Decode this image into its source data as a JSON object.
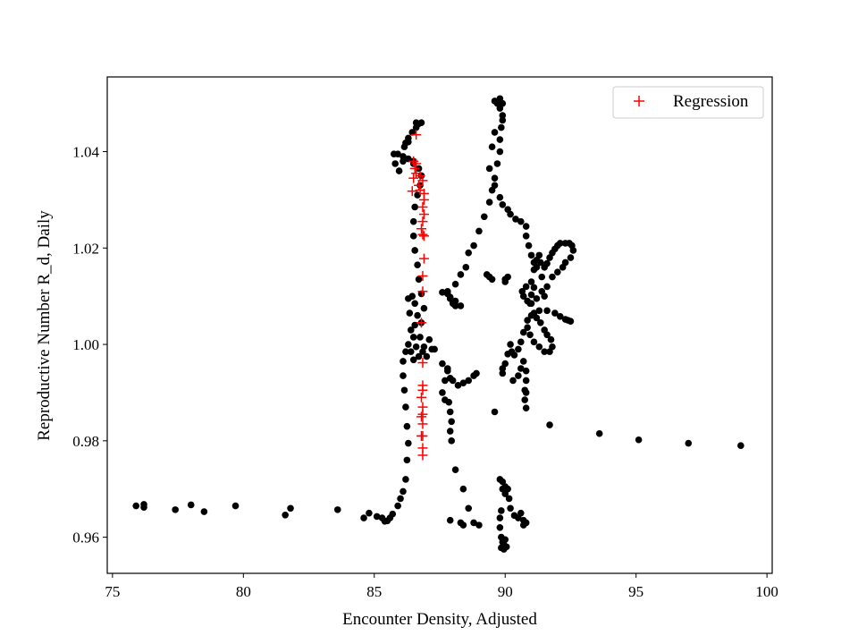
{
  "chart_data": {
    "type": "scatter",
    "title": "",
    "xlabel": "Encounter Density, Adjusted",
    "ylabel": "Reproductive Number R_d, Daily",
    "xlim": [
      74.8,
      100.2
    ],
    "ylim": [
      0.9525,
      1.0555
    ],
    "grid": false,
    "legend_placement": "top-right",
    "x_ticks": [
      75,
      80,
      85,
      90,
      95,
      100
    ],
    "x_tick_labels": [
      "75",
      "80",
      "85",
      "90",
      "95",
      "100"
    ],
    "y_ticks": [
      0.96,
      0.98,
      1.0,
      1.02,
      1.04
    ],
    "y_tick_labels": [
      "0.96",
      "0.98",
      "1.00",
      "1.02",
      "1.04"
    ],
    "series": [
      {
        "marker": "dot",
        "color": "#000000",
        "points": [
          [
            75.9,
            0.9665
          ],
          [
            76.2,
            0.9662
          ],
          [
            76.2,
            0.9668
          ],
          [
            77.4,
            0.9657
          ],
          [
            78.0,
            0.9667
          ],
          [
            78.5,
            0.9653
          ],
          [
            79.7,
            0.9665
          ],
          [
            81.6,
            0.9646
          ],
          [
            81.8,
            0.966
          ],
          [
            83.6,
            0.9657
          ],
          [
            84.6,
            0.964
          ],
          [
            84.8,
            0.965
          ],
          [
            85.1,
            0.9643
          ],
          [
            85.3,
            0.964
          ],
          [
            85.4,
            0.9633
          ],
          [
            85.5,
            0.9634
          ],
          [
            85.6,
            0.964
          ],
          [
            85.7,
            0.9648
          ],
          [
            85.9,
            0.9665
          ],
          [
            86.0,
            0.968
          ],
          [
            86.1,
            0.9695
          ],
          [
            86.2,
            0.972
          ],
          [
            86.25,
            0.976
          ],
          [
            86.3,
            0.9795
          ],
          [
            86.25,
            0.983
          ],
          [
            86.2,
            0.987
          ],
          [
            86.15,
            0.9905
          ],
          [
            86.1,
            0.9935
          ],
          [
            86.1,
            0.9965
          ],
          [
            86.2,
            0.9985
          ],
          [
            86.3,
            1.0
          ],
          [
            86.4,
            1.003
          ],
          [
            86.35,
            1.0065
          ],
          [
            86.3,
            1.0095
          ],
          [
            86.45,
            1.01
          ],
          [
            86.55,
            1.0085
          ],
          [
            86.65,
            1.006
          ],
          [
            86.55,
            1.004
          ],
          [
            86.5,
            1.0015
          ],
          [
            86.6,
            0.9995
          ],
          [
            86.4,
            0.9985
          ],
          [
            86.5,
            0.9968
          ],
          [
            86.7,
            0.9975
          ],
          [
            86.9,
            0.9995
          ],
          [
            87.1,
            1.001
          ],
          [
            87.2,
            0.999
          ],
          [
            87.0,
            0.9975
          ],
          [
            86.85,
            0.9985
          ],
          [
            86.75,
            1.0015
          ],
          [
            86.8,
            1.0045
          ],
          [
            86.9,
            1.0075
          ],
          [
            86.8,
            1.0105
          ],
          [
            86.7,
            1.0135
          ],
          [
            86.65,
            1.0165
          ],
          [
            86.55,
            1.0195
          ],
          [
            86.5,
            1.0225
          ],
          [
            86.5,
            1.0255
          ],
          [
            86.55,
            1.0285
          ],
          [
            86.65,
            1.031
          ],
          [
            86.75,
            1.033
          ],
          [
            86.8,
            1.035
          ],
          [
            86.7,
            1.0365
          ],
          [
            86.5,
            1.0375
          ],
          [
            86.3,
            1.0385
          ],
          [
            86.1,
            1.039
          ],
          [
            85.9,
            1.0395
          ],
          [
            85.75,
            1.0395
          ],
          [
            85.8,
            1.0375
          ],
          [
            85.95,
            1.036
          ],
          [
            86.1,
            1.038
          ],
          [
            86.15,
            1.041
          ],
          [
            86.3,
            1.042
          ],
          [
            86.45,
            1.044
          ],
          [
            86.6,
            1.045
          ],
          [
            86.7,
            1.0458
          ],
          [
            86.8,
            1.046
          ],
          [
            86.6,
            1.046
          ],
          [
            86.3,
            1.0428
          ],
          [
            86.2,
            1.0418
          ],
          [
            86.5,
            1.038
          ],
          [
            87.6,
            1.0108
          ],
          [
            87.8,
            1.0105
          ],
          [
            87.9,
            1.0095
          ],
          [
            88.0,
            1.0085
          ],
          [
            88.1,
            1.008
          ],
          [
            87.9,
            1.0098
          ],
          [
            87.8,
            1.011
          ],
          [
            88.1,
            1.0125
          ],
          [
            88.3,
            1.0145
          ],
          [
            88.5,
            1.016
          ],
          [
            88.6,
            1.019
          ],
          [
            88.8,
            1.0205
          ],
          [
            89.0,
            1.0235
          ],
          [
            89.2,
            1.0265
          ],
          [
            89.4,
            1.0295
          ],
          [
            89.5,
            1.032
          ],
          [
            89.6,
            1.0345
          ],
          [
            89.7,
            1.0375
          ],
          [
            89.8,
            1.04
          ],
          [
            89.8,
            1.0425
          ],
          [
            89.85,
            1.045
          ],
          [
            89.9,
            1.0475
          ],
          [
            89.9,
            1.05
          ],
          [
            89.8,
            1.051
          ],
          [
            89.7,
            1.05
          ],
          [
            89.6,
            1.0505
          ],
          [
            89.8,
            1.049
          ],
          [
            89.9,
            1.0465
          ],
          [
            89.6,
            1.044
          ],
          [
            89.5,
            1.041
          ],
          [
            89.4,
            1.0365
          ],
          [
            89.6,
            1.033
          ],
          [
            89.8,
            1.0305
          ],
          [
            89.9,
            1.029
          ],
          [
            90.1,
            1.028
          ],
          [
            90.2,
            1.027
          ],
          [
            90.4,
            1.026
          ],
          [
            90.6,
            1.0255
          ],
          [
            90.8,
            1.0245
          ],
          [
            90.8,
            1.0225
          ],
          [
            90.9,
            1.0205
          ],
          [
            91.0,
            1.0185
          ],
          [
            91.1,
            1.017
          ],
          [
            91.2,
            1.016
          ],
          [
            91.35,
            1.017
          ],
          [
            91.5,
            1.016
          ],
          [
            91.6,
            1.0168
          ],
          [
            91.7,
            1.018
          ],
          [
            91.8,
            1.019
          ],
          [
            91.9,
            1.0198
          ],
          [
            92.0,
            1.0205
          ],
          [
            92.1,
            1.021
          ],
          [
            92.3,
            1.021
          ],
          [
            92.45,
            1.021
          ],
          [
            92.55,
            1.0205
          ],
          [
            92.6,
            1.0195
          ],
          [
            92.5,
            1.018
          ],
          [
            92.3,
            1.017
          ],
          [
            92.2,
            1.016
          ],
          [
            92.0,
            1.015
          ],
          [
            91.8,
            1.014
          ],
          [
            91.6,
            1.012
          ],
          [
            91.4,
            1.011
          ],
          [
            91.2,
            1.0095
          ],
          [
            91.0,
            1.0085
          ],
          [
            90.85,
            1.009
          ],
          [
            90.7,
            1.01
          ],
          [
            90.65,
            1.011
          ],
          [
            90.8,
            1.012
          ],
          [
            91.0,
            1.013
          ],
          [
            91.1,
            1.0118
          ],
          [
            91.0,
            1.0103
          ],
          [
            90.95,
            1.0085
          ],
          [
            91.1,
            1.0065
          ],
          [
            91.2,
            1.0055
          ],
          [
            91.35,
            1.0045
          ],
          [
            91.5,
            1.003
          ],
          [
            91.6,
            1.002
          ],
          [
            91.75,
            1.001
          ],
          [
            91.8,
            0.9995
          ],
          [
            91.7,
            0.9985
          ],
          [
            91.5,
            0.9985
          ],
          [
            91.3,
            0.9995
          ],
          [
            91.1,
            1.0005
          ],
          [
            90.95,
            1.002
          ],
          [
            90.85,
            1.0035
          ],
          [
            90.85,
            1.005
          ],
          [
            91.0,
            1.006
          ],
          [
            91.3,
            1.007
          ],
          [
            91.6,
            1.007
          ],
          [
            91.9,
            1.0065
          ],
          [
            92.1,
            1.0058
          ],
          [
            92.4,
            1.005
          ],
          [
            92.5,
            1.0048
          ],
          [
            92.3,
            1.0052
          ],
          [
            91.5,
            1.01
          ],
          [
            91.4,
            1.014
          ],
          [
            91.3,
            1.0185
          ],
          [
            91.2,
            1.0175
          ],
          [
            91.1,
            1.0155
          ],
          [
            90.7,
            1.0025
          ],
          [
            90.6,
            1.0005
          ],
          [
            90.5,
            0.999
          ],
          [
            90.35,
            0.9978
          ],
          [
            90.25,
            0.9985
          ],
          [
            90.2,
            1.0
          ],
          [
            90.1,
            0.998
          ],
          [
            90.0,
            0.996
          ],
          [
            89.9,
            0.995
          ],
          [
            89.9,
            0.994
          ],
          [
            90.3,
            0.9925
          ],
          [
            90.5,
            0.9935
          ],
          [
            90.6,
            0.995
          ],
          [
            90.7,
            0.9965
          ],
          [
            90.8,
            0.9945
          ],
          [
            90.8,
            0.9925
          ],
          [
            90.75,
            0.9905
          ],
          [
            90.75,
            0.9885
          ],
          [
            90.8,
            0.9868
          ],
          [
            90.8,
            0.99
          ],
          [
            89.3,
            1.0145
          ],
          [
            89.4,
            1.014
          ],
          [
            89.5,
            1.0135
          ],
          [
            90.0,
            1.013
          ],
          [
            90.0,
            1.0135
          ],
          [
            90.1,
            1.014
          ],
          [
            88.1,
            1.009
          ],
          [
            88.3,
            1.008
          ],
          [
            87.3,
            0.999
          ],
          [
            87.6,
            0.996
          ],
          [
            87.8,
            0.995
          ],
          [
            87.9,
            0.993
          ],
          [
            88.0,
            0.9925
          ],
          [
            88.2,
            0.9915
          ],
          [
            88.4,
            0.992
          ],
          [
            88.6,
            0.9925
          ],
          [
            88.8,
            0.9935
          ],
          [
            88.9,
            0.994
          ],
          [
            87.8,
            0.9945
          ],
          [
            87.7,
            0.9925
          ],
          [
            87.6,
            0.99
          ],
          [
            87.7,
            0.9885
          ],
          [
            87.85,
            0.988
          ],
          [
            87.9,
            0.986
          ],
          [
            87.95,
            0.984
          ],
          [
            87.9,
            0.982
          ],
          [
            87.95,
            0.98
          ],
          [
            88.1,
            0.974
          ],
          [
            88.4,
            0.97
          ],
          [
            88.6,
            0.966
          ],
          [
            87.9,
            0.9635
          ],
          [
            88.3,
            0.963
          ],
          [
            88.4,
            0.9625
          ],
          [
            88.8,
            0.963
          ],
          [
            89.0,
            0.9625
          ],
          [
            89.6,
            0.986
          ],
          [
            91.7,
            0.9833
          ],
          [
            93.6,
            0.9815
          ],
          [
            95.1,
            0.9802
          ],
          [
            97.0,
            0.9795
          ],
          [
            99.0,
            0.979
          ],
          [
            89.8,
            0.972
          ],
          [
            89.9,
            0.9715
          ],
          [
            90.0,
            0.9705
          ],
          [
            90.1,
            0.97
          ],
          [
            90.15,
            0.968
          ],
          [
            90.2,
            0.966
          ],
          [
            90.35,
            0.9645
          ],
          [
            90.5,
            0.964
          ],
          [
            90.6,
            0.965
          ],
          [
            90.7,
            0.9635
          ],
          [
            90.8,
            0.963
          ],
          [
            90.7,
            0.9625
          ],
          [
            89.85,
            0.9655
          ],
          [
            89.8,
            0.964
          ],
          [
            89.8,
            0.962
          ],
          [
            89.85,
            0.96
          ],
          [
            89.9,
            0.959
          ],
          [
            89.95,
            0.9585
          ],
          [
            89.85,
            0.9578
          ],
          [
            89.95,
            0.9575
          ],
          [
            90.05,
            0.958
          ],
          [
            90.0,
            0.9595
          ],
          [
            90.0,
            0.969
          ],
          [
            89.9,
            0.97
          ]
        ]
      },
      {
        "name": "Regression",
        "marker": "plus",
        "color": "#ff0000",
        "points": [
          [
            86.6,
            1.0435
          ],
          [
            86.5,
            1.038
          ],
          [
            86.6,
            1.0375
          ],
          [
            86.55,
            1.0365
          ],
          [
            86.6,
            1.0355
          ],
          [
            86.75,
            1.035
          ],
          [
            86.5,
            1.0345
          ],
          [
            86.85,
            1.034
          ],
          [
            86.7,
            1.033
          ],
          [
            86.75,
            1.032
          ],
          [
            86.45,
            1.0318
          ],
          [
            86.9,
            1.0313
          ],
          [
            86.9,
            1.03
          ],
          [
            86.85,
            1.0285
          ],
          [
            86.9,
            1.027
          ],
          [
            86.85,
            1.0255
          ],
          [
            86.8,
            1.024
          ],
          [
            86.85,
            1.0228
          ],
          [
            86.9,
            1.0225
          ],
          [
            86.9,
            1.0178
          ],
          [
            86.85,
            1.0142
          ],
          [
            86.85,
            1.011
          ],
          [
            86.8,
            1.0045
          ],
          [
            86.85,
            0.9962
          ],
          [
            86.85,
            0.9915
          ],
          [
            86.85,
            0.9905
          ],
          [
            86.8,
            0.989
          ],
          [
            86.85,
            0.987
          ],
          [
            86.85,
            0.9855
          ],
          [
            86.8,
            0.985
          ],
          [
            86.85,
            0.9835
          ],
          [
            86.85,
            0.981
          ],
          [
            86.8,
            0.981
          ],
          [
            86.85,
            0.9785
          ],
          [
            86.85,
            0.977
          ]
        ]
      }
    ]
  }
}
